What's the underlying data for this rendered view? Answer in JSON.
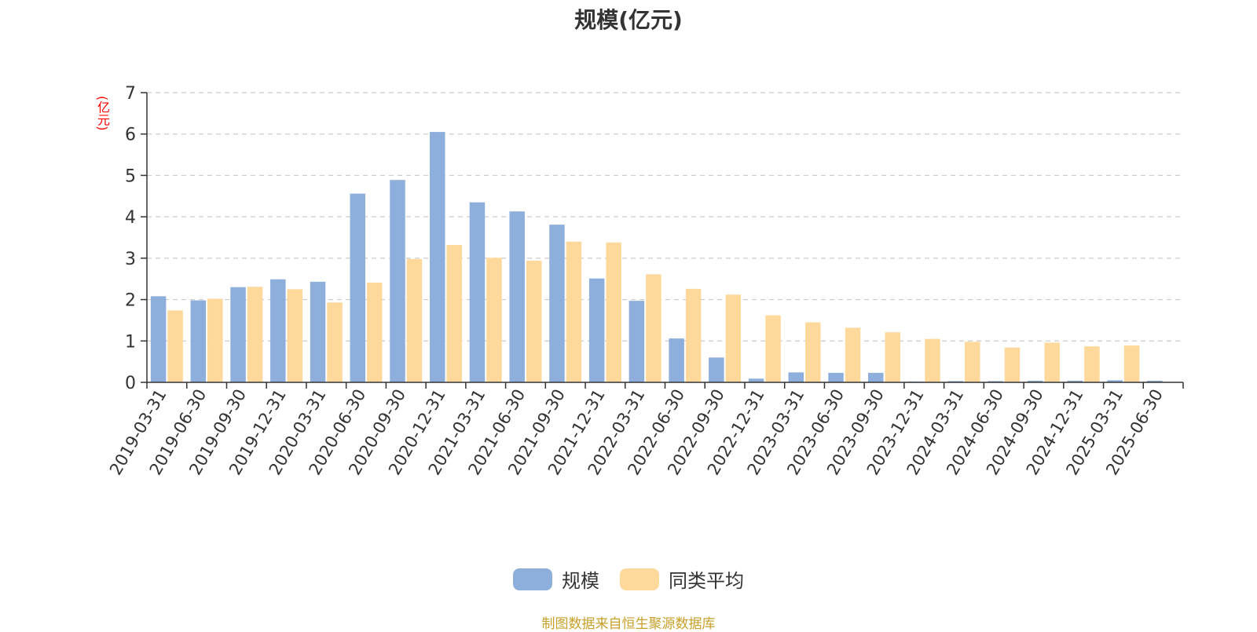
{
  "chart_data": {
    "type": "bar",
    "title": "规模(亿元)",
    "y_unit": "(亿元)",
    "categories": [
      "2019-03-31",
      "2019-06-30",
      "2019-09-30",
      "2019-12-31",
      "2020-03-31",
      "2020-06-30",
      "2020-09-30",
      "2020-12-31",
      "2021-03-31",
      "2021-06-30",
      "2021-09-30",
      "2021-12-31",
      "2022-03-31",
      "2022-06-30",
      "2022-09-30",
      "2022-12-31",
      "2023-03-31",
      "2023-06-30",
      "2023-09-30",
      "2023-12-31",
      "2024-03-31",
      "2024-06-30",
      "2024-09-30",
      "2024-12-31",
      "2025-03-31",
      "2025-06-30"
    ],
    "series": [
      {
        "name": "规模",
        "color": "#8EAEDB",
        "values": [
          2.08,
          1.98,
          2.3,
          2.49,
          2.43,
          4.56,
          4.89,
          6.05,
          4.35,
          4.13,
          3.81,
          2.51,
          1.97,
          1.06,
          0.6,
          0.09,
          0.24,
          0.23,
          0.23,
          0.02,
          0.03,
          0.03,
          0.04,
          0.04,
          0.05,
          0.04
        ]
      },
      {
        "name": "同类平均",
        "color": "#FFD99B",
        "values": [
          1.74,
          2.02,
          2.31,
          2.25,
          1.93,
          2.41,
          2.98,
          3.32,
          3.01,
          2.94,
          3.4,
          3.38,
          2.61,
          2.26,
          2.12,
          1.62,
          1.45,
          1.32,
          1.21,
          1.05,
          0.98,
          0.84,
          0.96,
          0.87,
          0.89,
          null
        ]
      }
    ],
    "ylim": [
      0,
      7
    ],
    "y_ticks": [
      0,
      1,
      2,
      3,
      4,
      5,
      6,
      7
    ],
    "grid": true,
    "legend_position": "bottom"
  },
  "source_note": "制图数据来自恒生聚源数据库",
  "colors": {
    "axis": "#333333",
    "grid": "#cccccc",
    "y_unit": "#ff0000",
    "source_note": "#c8a02a"
  }
}
